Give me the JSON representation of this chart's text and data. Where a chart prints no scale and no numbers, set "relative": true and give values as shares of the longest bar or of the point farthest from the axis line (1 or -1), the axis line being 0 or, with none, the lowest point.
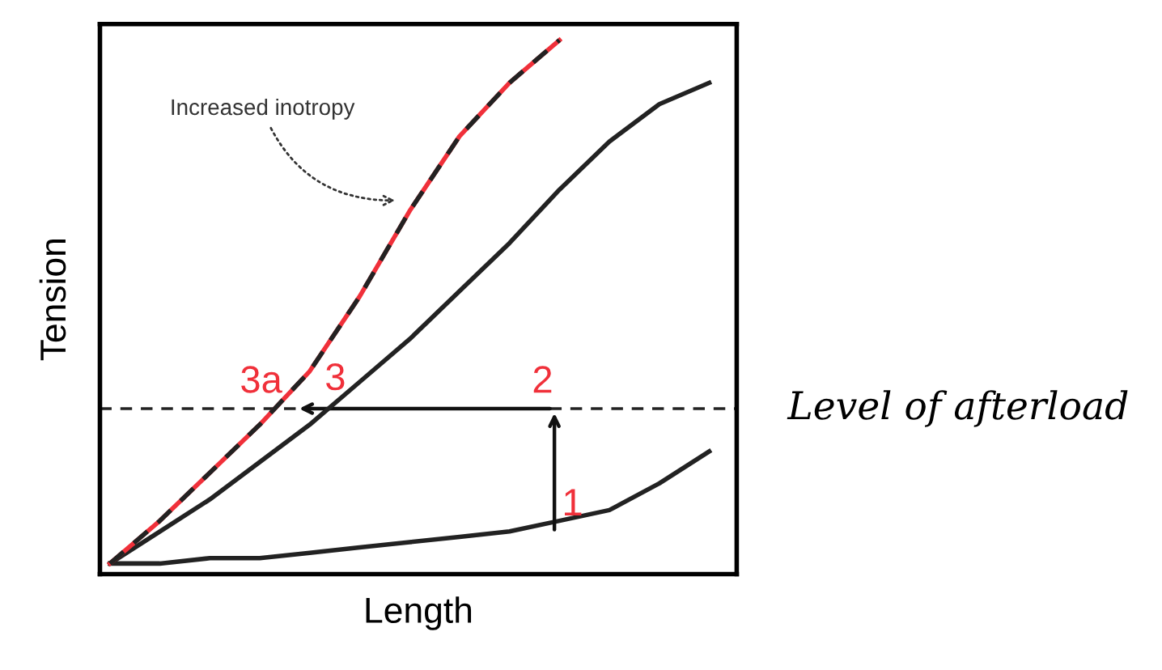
{
  "chart_data": {
    "type": "line",
    "relative": true,
    "xlabel": "Length",
    "ylabel": "Tension",
    "categories": [
      null,
      null,
      null,
      null,
      null,
      null,
      null,
      null,
      null,
      null,
      null,
      null,
      null
    ],
    "series": [
      {
        "color": "#222222",
        "values": [
          0.02,
          0.02,
          0.03,
          0.03,
          0.04,
          0.05,
          0.06,
          0.07,
          0.08,
          0.1,
          0.12,
          0.17,
          0.23
        ]
      },
      {
        "color": "#222222",
        "values": [
          0.02,
          0.08,
          0.14,
          0.21,
          0.28,
          0.36,
          0.44,
          0.53,
          0.62,
          0.72,
          0.81,
          0.88,
          0.92
        ]
      },
      {
        "color": "#f0303a",
        "values": [
          0.02,
          0.1,
          0.19,
          0.28,
          0.38,
          0.52,
          0.68,
          0.82,
          0.92,
          1.0,
          null,
          null,
          null
        ]
      },
      {
        "color": "#222222",
        "line_style": "dashed",
        "values": [
          0.02,
          0.1,
          0.19,
          0.28,
          0.38,
          0.52,
          0.68,
          0.82,
          0.92,
          1.0,
          null,
          null,
          null
        ]
      }
    ],
    "ref_lines": [
      {
        "axis": "y",
        "value": 0.31,
        "label": "Level of afterload",
        "color": "#222222",
        "line_style": "dashed"
      }
    ],
    "annotations": [
      "Increased inotropy",
      "1",
      "2",
      "3",
      "3a"
    ],
    "grid": false,
    "legend": false
  }
}
